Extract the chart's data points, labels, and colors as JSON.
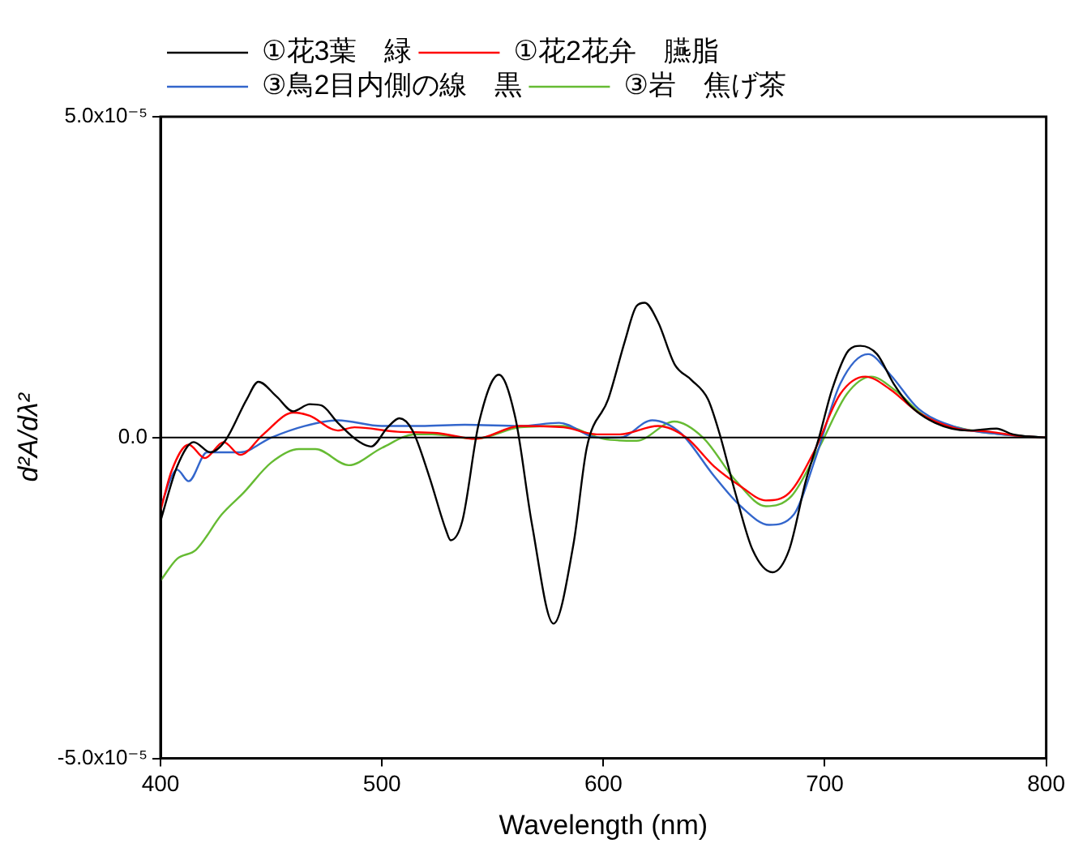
{
  "chart_data": {
    "type": "line",
    "xlabel": "Wavelength (nm)",
    "ylabel": "d²A/dλ²",
    "xlim": [
      400,
      800
    ],
    "xticks": [
      400,
      500,
      600,
      700,
      800
    ],
    "ylim": [
      -5e-05,
      5e-05
    ],
    "yticks": [
      {
        "value": -5e-05,
        "label": "-5.0x10⁻⁵"
      },
      {
        "value": 0,
        "label": "0.0"
      },
      {
        "value": 5e-05,
        "label": "5.0x10⁻⁵"
      }
    ],
    "grid": false,
    "legend": "top left",
    "marker": "none",
    "line_style": "solid",
    "ref_lines": [
      {
        "axis": "y",
        "value": 0,
        "color": "#000000"
      }
    ],
    "series": [
      {
        "name": "①花3葉　緑",
        "color": "#000000",
        "x": [
          400,
          407.5,
          415,
          422.5,
          429.2,
          439,
          444.2,
          452.4,
          459.9,
          467.4,
          472.7,
          480.1,
          489.9,
          495.1,
          502.6,
          507.9,
          513.8,
          521.3,
          528.8,
          531,
          536.3,
          543.8,
          552.8,
          560.3,
          567.8,
          577.5,
          586.5,
          592.5,
          602.2,
          609.7,
          615,
          618.7,
          624.7,
          632.2,
          639.7,
          647.2,
          652.4,
          659.9,
          667.4,
          676.4,
          683.9,
          691.4,
          697.4,
          703.3,
          710.8,
          716.1,
          723.6,
          731.1,
          738.5,
          749.8,
          764.8,
          777.5,
          785,
          800
        ],
        "values": [
          -1.3e-05,
          -4.5e-06,
          -7e-07,
          -2.3e-06,
          -5e-07,
          6e-06,
          8.7e-06,
          6.4e-06,
          4.1e-06,
          5.2e-06,
          5e-06,
          2.3e-06,
          -7e-07,
          -1.4e-06,
          1.6e-06,
          3e-06,
          1.1e-06,
          -6e-06,
          -1.43e-05,
          -1.6e-05,
          -1.3e-05,
          2.3e-06,
          9.8e-06,
          3e-06,
          -1.36e-05,
          -2.9e-05,
          -1.66e-05,
          -1.6e-06,
          6e-06,
          1.5e-05,
          2.05e-05,
          2.1e-05,
          1.8e-05,
          1.14e-05,
          9e-06,
          6e-06,
          7e-07,
          -9e-06,
          -1.75e-05,
          -2.1e-05,
          -1.75e-05,
          -6.8e-06,
          0,
          7.5e-06,
          1.36e-05,
          1.43e-05,
          1.3e-05,
          8.4e-06,
          5e-06,
          2.3e-06,
          1.1e-06,
          1.4e-06,
          5e-07,
          0
        ]
      },
      {
        "name": "①花2花弁　臙脂",
        "color": "#ff0000",
        "x": [
          400,
          405,
          412.7,
          420,
          428.5,
          436,
          446.4,
          460,
          467.4,
          480,
          487.6,
          507,
          525,
          542.3,
          562.5,
          582,
          597,
          607.5,
          624.7,
          637.4,
          650,
          662,
          673.4,
          684,
          695,
          707,
          718.3,
          729.6,
          742.3,
          759.5,
          774.5,
          789.5,
          800
        ],
        "values": [
          -1.14e-05,
          -5.2e-06,
          -1.1e-06,
          -3.2e-06,
          -7e-07,
          -2.7e-06,
          5e-07,
          3.9e-06,
          3.4e-06,
          1.1e-06,
          1.6e-06,
          9e-07,
          7e-07,
          -2e-07,
          1.8e-06,
          1.6e-06,
          5e-07,
          5e-07,
          1.8e-06,
          0,
          -4.5e-06,
          -7.6e-06,
          -9.8e-06,
          -8.6e-06,
          -2.3e-06,
          6.8e-06,
          9.5e-06,
          7.5e-06,
          3.9e-06,
          1.4e-06,
          9e-07,
          2e-07,
          0
        ]
      },
      {
        "name": "③鳥2目内側の線　黒",
        "color": "#3366cc",
        "x": [
          400,
          407.5,
          412.7,
          421,
          436,
          450,
          465,
          480,
          500,
          517.5,
          537.4,
          562.5,
          580,
          597.5,
          607.5,
          622,
          634.9,
          650,
          662,
          674.9,
          686,
          696,
          707,
          719.6,
          729.6,
          742.3,
          759.5,
          779.5,
          800
        ],
        "values": [
          -1.07e-05,
          -5e-06,
          -6.8e-06,
          -2.3e-06,
          -2.3e-06,
          0,
          1.8e-06,
          2.7e-06,
          1.8e-06,
          1.8e-06,
          2e-06,
          1.8e-06,
          2.3e-06,
          0,
          0,
          2.7e-06,
          7e-07,
          -6e-06,
          -1.07e-05,
          -1.36e-05,
          -1.2e-05,
          -3e-06,
          8.4e-06,
          1.3e-05,
          9.8e-06,
          4.5e-06,
          1.6e-06,
          5e-07,
          0
        ]
      },
      {
        "name": "③岩　焦げ茶",
        "color": "#66bb33",
        "x": [
          400,
          407.5,
          416,
          427.6,
          437.5,
          450,
          462.5,
          470,
          485,
          500,
          515,
          522.6,
          542.3,
          562.5,
          582,
          600,
          615,
          632,
          645,
          660,
          673.4,
          685,
          697.4,
          710,
          721,
          732,
          745,
          762,
          780,
          800
        ],
        "values": [
          -2.23e-05,
          -1.89e-05,
          -1.75e-05,
          -1.2e-05,
          -8.6e-06,
          -3.9e-06,
          -1.8e-06,
          -1.8e-06,
          -4.3e-06,
          -1.6e-06,
          5e-07,
          5e-07,
          -2e-07,
          1.6e-06,
          1.8e-06,
          -2e-07,
          -5e-07,
          2.5e-06,
          0,
          -6.8e-06,
          -1.07e-05,
          -9.1e-06,
          -1.6e-06,
          6.8e-06,
          9.5e-06,
          7.3e-06,
          3.4e-06,
          1.4e-06,
          5e-07,
          0
        ]
      }
    ]
  }
}
